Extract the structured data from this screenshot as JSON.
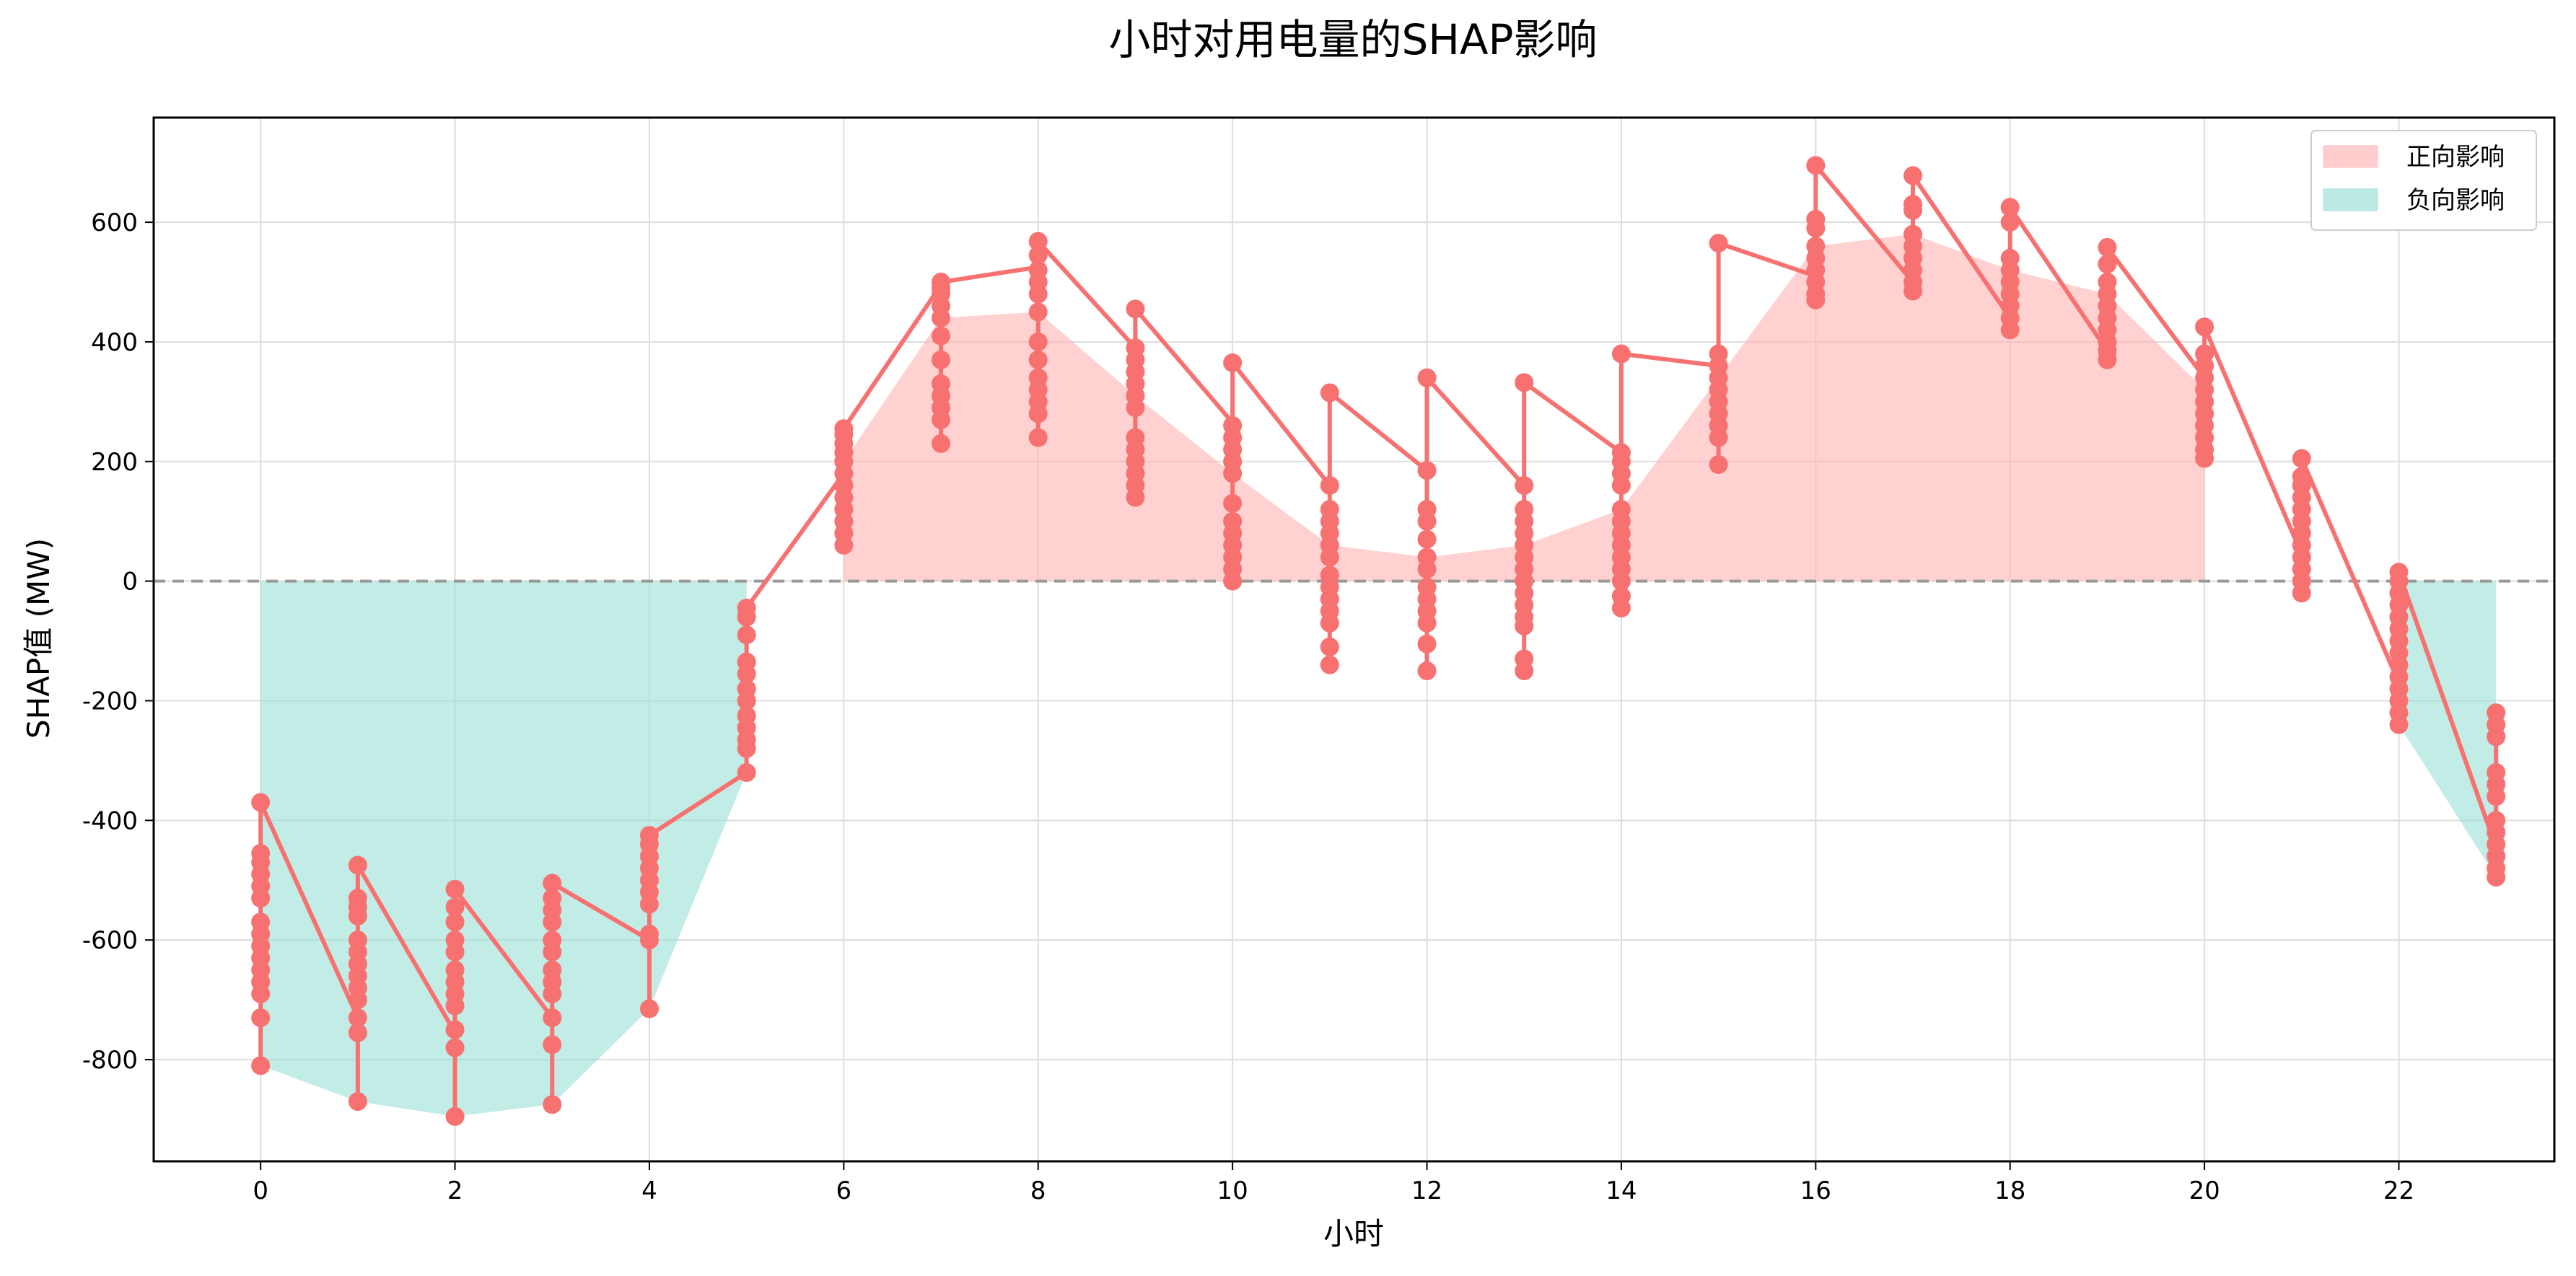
{
  "colors": {
    "line": "#f87171",
    "positive_fill": "#ffb3b3",
    "negative_fill": "#99dfd6",
    "zero_line": "#999999",
    "grid": "#dddddd"
  },
  "chart_data": {
    "type": "line",
    "title": "小时对用电量的SHAP影响",
    "xlabel": "小时",
    "ylabel": "SHAP值 (MW)",
    "xlim": [
      -1.1,
      23.6
    ],
    "ylim": [
      -970,
      775
    ],
    "xticks": [
      0,
      2,
      4,
      6,
      8,
      10,
      12,
      14,
      16,
      18,
      20,
      22
    ],
    "yticks": [
      -800,
      -600,
      -400,
      -200,
      0,
      200,
      400,
      600
    ],
    "grid": true,
    "zero_reference_line": 0,
    "legend": {
      "placement": "top-right",
      "entries": [
        {
          "label": "正向影响",
          "color_key": "positive_fill"
        },
        {
          "label": "负向影响",
          "color_key": "negative_fill"
        }
      ]
    },
    "hours": [
      0,
      1,
      2,
      3,
      4,
      5,
      6,
      7,
      8,
      9,
      10,
      11,
      12,
      13,
      14,
      15,
      16,
      17,
      18,
      19,
      20,
      21,
      22,
      23
    ],
    "points": [
      [
        -810,
        -730,
        -690,
        -670,
        -650,
        -630,
        -610,
        -590,
        -570,
        -530,
        -510,
        -490,
        -470,
        -455,
        -370
      ],
      [
        -870,
        -755,
        -730,
        -700,
        -680,
        -660,
        -640,
        -620,
        -600,
        -560,
        -545,
        -530,
        -475
      ],
      [
        -895,
        -780,
        -750,
        -710,
        -690,
        -670,
        -650,
        -620,
        -600,
        -570,
        -545,
        -515
      ],
      [
        -875,
        -775,
        -730,
        -690,
        -670,
        -650,
        -620,
        -600,
        -570,
        -550,
        -530,
        -505
      ],
      [
        -715,
        -600,
        -590,
        -540,
        -520,
        -500,
        -480,
        -460,
        -440,
        -425
      ],
      [
        -320,
        -280,
        -265,
        -245,
        -225,
        -200,
        -180,
        -155,
        -135,
        -90,
        -60,
        -45
      ],
      [
        60,
        80,
        100,
        120,
        140,
        160,
        180,
        200,
        215,
        230,
        245,
        255
      ],
      [
        230,
        270,
        290,
        310,
        330,
        370,
        410,
        440,
        460,
        480,
        490,
        500
      ],
      [
        240,
        280,
        300,
        320,
        340,
        370,
        400,
        450,
        480,
        500,
        520,
        545,
        568
      ],
      [
        140,
        160,
        180,
        200,
        220,
        240,
        290,
        310,
        330,
        350,
        370,
        390,
        455
      ],
      [
        0,
        20,
        40,
        60,
        80,
        100,
        130,
        180,
        200,
        220,
        240,
        260,
        365
      ],
      [
        -140,
        -110,
        -70,
        -50,
        -30,
        -10,
        10,
        40,
        60,
        80,
        100,
        120,
        160,
        315
      ],
      [
        -150,
        -105,
        -70,
        -50,
        -30,
        -10,
        20,
        40,
        70,
        100,
        120,
        185,
        340
      ],
      [
        -150,
        -130,
        -75,
        -60,
        -40,
        -20,
        0,
        20,
        40,
        60,
        80,
        100,
        120,
        160,
        332
      ],
      [
        -45,
        -25,
        0,
        20,
        40,
        60,
        80,
        100,
        120,
        160,
        180,
        200,
        215,
        380
      ],
      [
        195,
        240,
        260,
        280,
        300,
        320,
        340,
        360,
        380,
        565
      ],
      [
        470,
        480,
        500,
        520,
        540,
        560,
        590,
        605,
        695
      ],
      [
        485,
        500,
        520,
        540,
        560,
        580,
        620,
        630,
        678
      ],
      [
        420,
        440,
        460,
        480,
        500,
        520,
        540,
        600,
        625
      ],
      [
        370,
        385,
        400,
        420,
        440,
        460,
        480,
        500,
        530,
        558
      ],
      [
        205,
        220,
        240,
        260,
        280,
        300,
        320,
        340,
        360,
        380,
        425
      ],
      [
        -20,
        0,
        20,
        40,
        60,
        80,
        100,
        120,
        140,
        160,
        175,
        205
      ],
      [
        -240,
        -220,
        -200,
        -180,
        -160,
        -140,
        -120,
        -100,
        -80,
        -60,
        -40,
        -20,
        0,
        15
      ],
      [
        -495,
        -480,
        -460,
        -440,
        -420,
        -400,
        -360,
        -340,
        -320,
        -260,
        -240,
        -220
      ]
    ],
    "line_path": [
      [
        0,
        -810
      ],
      [
        0,
        -370
      ],
      [
        1,
        -730
      ],
      [
        1,
        -870
      ],
      [
        1,
        -475
      ],
      [
        2,
        -755
      ],
      [
        2,
        -895
      ],
      [
        2,
        -515
      ],
      [
        3,
        -730
      ],
      [
        3,
        -875
      ],
      [
        3,
        -505
      ],
      [
        4,
        -600
      ],
      [
        4,
        -715
      ],
      [
        4,
        -425
      ],
      [
        5,
        -320
      ],
      [
        5,
        -45
      ],
      [
        6,
        180
      ],
      [
        6,
        60
      ],
      [
        6,
        255
      ],
      [
        7,
        495
      ],
      [
        7,
        230
      ],
      [
        7,
        500
      ],
      [
        8,
        525
      ],
      [
        8,
        240
      ],
      [
        8,
        568
      ],
      [
        9,
        390
      ],
      [
        9,
        140
      ],
      [
        9,
        455
      ],
      [
        10,
        265
      ],
      [
        10,
        0
      ],
      [
        10,
        365
      ],
      [
        11,
        160
      ],
      [
        11,
        -140
      ],
      [
        11,
        315
      ],
      [
        12,
        185
      ],
      [
        12,
        -150
      ],
      [
        12,
        340
      ],
      [
        13,
        160
      ],
      [
        13,
        -150
      ],
      [
        13,
        332
      ],
      [
        14,
        215
      ],
      [
        14,
        -45
      ],
      [
        14,
        380
      ],
      [
        15,
        360
      ],
      [
        15,
        195
      ],
      [
        15,
        565
      ],
      [
        16,
        510
      ],
      [
        16,
        470
      ],
      [
        16,
        695
      ],
      [
        17,
        500
      ],
      [
        17,
        485
      ],
      [
        17,
        678
      ],
      [
        18,
        440
      ],
      [
        18,
        420
      ],
      [
        18,
        625
      ],
      [
        19,
        385
      ],
      [
        19,
        370
      ],
      [
        19,
        558
      ],
      [
        20,
        340
      ],
      [
        20,
        205
      ],
      [
        20,
        425
      ],
      [
        21,
        45
      ],
      [
        21,
        -20
      ],
      [
        21,
        205
      ],
      [
        22,
        -170
      ],
      [
        22,
        -240
      ],
      [
        22,
        15
      ],
      [
        23,
        -445
      ],
      [
        23,
        -495
      ],
      [
        23,
        -220
      ]
    ]
  }
}
